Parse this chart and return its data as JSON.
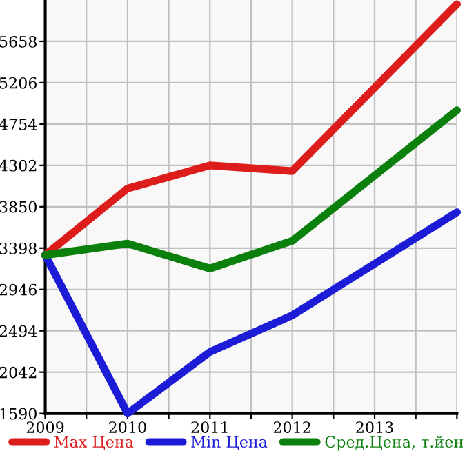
{
  "chart_data": {
    "type": "line",
    "x": [
      2009,
      2010,
      2011,
      2012,
      2014
    ],
    "series": [
      {
        "name": "Max Цена",
        "color": "#dd1c1c",
        "values": [
          3322,
          4050,
          4302,
          4240,
          6065
        ]
      },
      {
        "name": "Min Цена",
        "color": "#1c1cd6",
        "values": [
          3322,
          1590,
          2263,
          2663,
          3790
        ]
      },
      {
        "name": "Сред.Цена, т.йен",
        "color": "#0c800c",
        "values": [
          3322,
          3447,
          3175,
          3477,
          4905
        ]
      }
    ],
    "xlim": [
      2009,
      2014
    ],
    "xticks": [
      2009,
      {
        "value": 2009.5,
        "label": null
      },
      2010,
      {
        "value": 2010.5,
        "label": null
      },
      2011,
      {
        "value": 2011.5,
        "label": null
      },
      2012,
      {
        "value": 2012.5,
        "label": null
      },
      2013,
      {
        "value": 2013.5,
        "label": null
      },
      {
        "value": 2014,
        "label": null
      }
    ],
    "ylim": [
      1590,
      6110
    ],
    "yticks": [
      1590,
      2042,
      2494,
      2946,
      3398,
      3850,
      4302,
      4754,
      5206,
      5658
    ],
    "grid": true,
    "legend": "bottom",
    "marker": "none",
    "line_style": "solid"
  }
}
